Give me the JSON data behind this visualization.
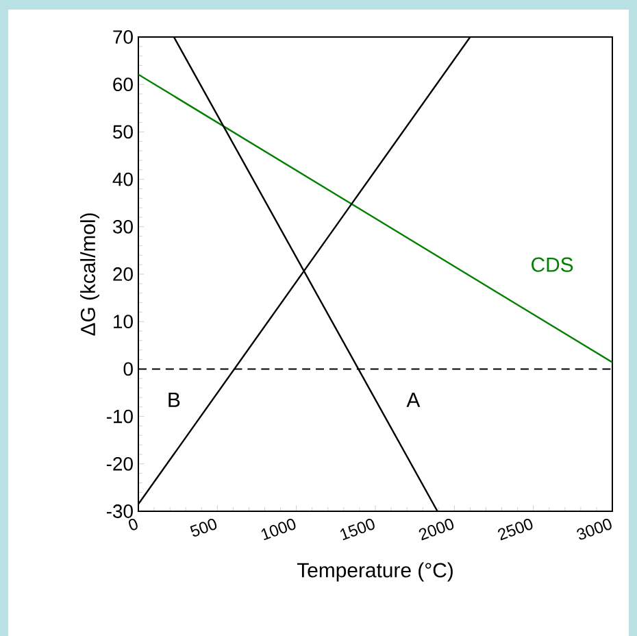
{
  "chart_data": {
    "type": "line",
    "xlabel": "Temperature (°C)",
    "ylabel": "ΔG (kcal/mol)",
    "xlim": [
      0,
      3000
    ],
    "ylim": [
      -30,
      70
    ],
    "xticks": [
      0,
      500,
      1000,
      1500,
      2000,
      2500,
      3000
    ],
    "yticks": [
      -30,
      -20,
      -10,
      0,
      10,
      20,
      30,
      40,
      50,
      60,
      70
    ],
    "series": [
      {
        "name": "CDS",
        "color": "#008000",
        "x": [
          0,
          3000
        ],
        "values": [
          62.1,
          1.4
        ]
      },
      {
        "name": "A",
        "color": "#000000",
        "x": [
          225,
          1893
        ],
        "values": [
          70,
          -30
        ]
      },
      {
        "name": "B",
        "color": "#000000",
        "x": [
          0,
          2100
        ],
        "values": [
          -28.5,
          70
        ]
      }
    ],
    "ref_lines": [
      {
        "axis": "y",
        "value": 0,
        "line_style": "dashed",
        "color": "#000000"
      }
    ],
    "grid": false,
    "legend": false,
    "marker": "none",
    "line_style": "solid"
  }
}
